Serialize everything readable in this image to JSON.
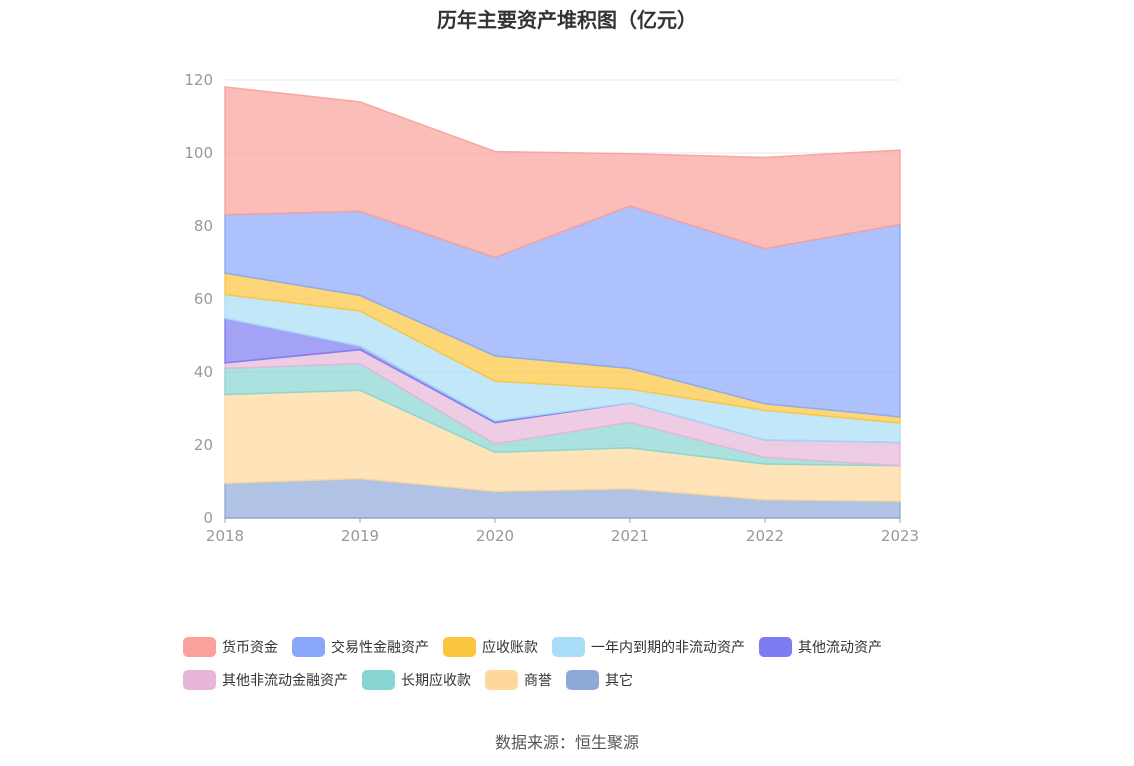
{
  "chart_data": {
    "type": "area",
    "stacked": true,
    "title": "历年主要资产堆积图（亿元）",
    "categories": [
      "2018",
      "2019",
      "2020",
      "2021",
      "2022",
      "2023"
    ],
    "ylim": [
      0,
      120
    ],
    "yticks": [
      0,
      20,
      40,
      60,
      80,
      100,
      120
    ],
    "grid": true,
    "legend_position": "bottom",
    "series": [
      {
        "name": "其它",
        "color": "#8eaad9",
        "values": [
          9.5,
          10.8,
          7.3,
          8.0,
          5.0,
          4.6
        ]
      },
      {
        "name": "商誉",
        "color": "#fdd89a",
        "values": [
          24.3,
          24.2,
          10.7,
          11.2,
          9.8,
          9.7
        ]
      },
      {
        "name": "长期应收款",
        "color": "#87d5d3",
        "values": [
          7.2,
          7.3,
          2.3,
          7.0,
          1.8,
          0.0
        ]
      },
      {
        "name": "其他非流动金融资产",
        "color": "#e7b6d9",
        "values": [
          1.5,
          3.8,
          5.8,
          5.3,
          4.8,
          6.4
        ]
      },
      {
        "name": "其他流动资产",
        "color": "#7c7bf0",
        "values": [
          12.2,
          1.0,
          0.5,
          0.0,
          0.0,
          0.0
        ]
      },
      {
        "name": "一年内到期的非流动资产",
        "color": "#a8ddf7",
        "values": [
          6.5,
          9.6,
          10.9,
          3.8,
          8.1,
          5.3
        ]
      },
      {
        "name": "应收账款",
        "color": "#fcc53e",
        "values": [
          5.9,
          4.3,
          6.9,
          5.7,
          1.8,
          1.7
        ]
      },
      {
        "name": "交易性金融资产",
        "color": "#8aa8fb",
        "values": [
          16.0,
          23.0,
          27.0,
          44.5,
          42.5,
          52.7
        ]
      },
      {
        "name": "货币资金",
        "color": "#f9a19a",
        "values": [
          35.0,
          30.0,
          29.0,
          14.3,
          25.0,
          20.4
        ]
      }
    ]
  },
  "legend_rows": [
    [
      {
        "label": "货币资金",
        "color": "#f9a19a"
      },
      {
        "label": "交易性金融资产",
        "color": "#8aa8fb"
      },
      {
        "label": "应收账款",
        "color": "#fcc53e"
      },
      {
        "label": "一年内到期的非流动资产",
        "color": "#a8ddf7"
      },
      {
        "label": "其他流动资产",
        "color": "#7c7bf0"
      }
    ],
    [
      {
        "label": "其他非流动金融资产",
        "color": "#e7b6d9"
      },
      {
        "label": "长期应收款",
        "color": "#87d5d3"
      },
      {
        "label": "商誉",
        "color": "#fdd89a"
      },
      {
        "label": "其它",
        "color": "#8eaad9"
      }
    ]
  ],
  "source": "数据来源：恒生聚源"
}
